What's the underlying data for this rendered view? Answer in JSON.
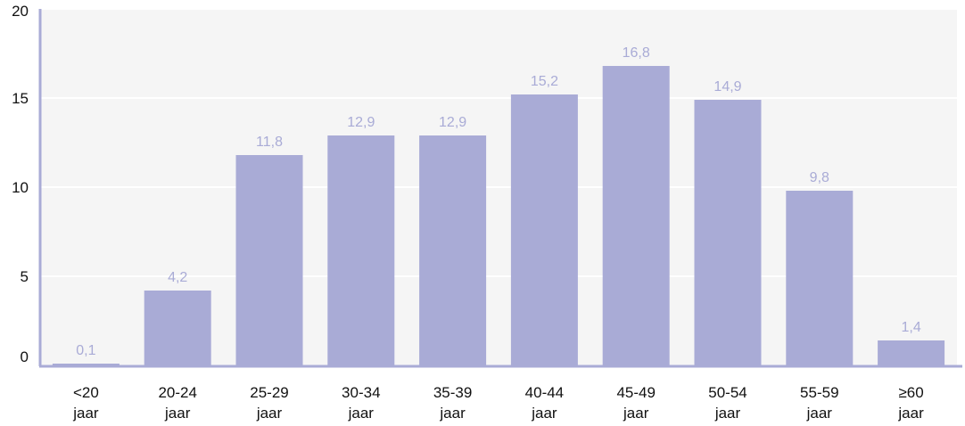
{
  "chart_data": {
    "type": "bar",
    "categories": [
      [
        "<20",
        "jaar"
      ],
      [
        "20-24",
        "jaar"
      ],
      [
        "25-29",
        "jaar"
      ],
      [
        "30-34",
        "jaar"
      ],
      [
        "35-39",
        "jaar"
      ],
      [
        "40-44",
        "jaar"
      ],
      [
        "45-49",
        "jaar"
      ],
      [
        "50-54",
        "jaar"
      ],
      [
        "55-59",
        "jaar"
      ],
      [
        "≥60",
        "jaar"
      ]
    ],
    "values": [
      0.1,
      4.2,
      11.8,
      12.9,
      12.9,
      15.2,
      16.8,
      14.9,
      9.8,
      1.4
    ],
    "data_labels": [
      "0,1",
      "4,2",
      "11,8",
      "12,9",
      "12,9",
      "15,2",
      "16,8",
      "14,9",
      "9,8",
      "1,4"
    ],
    "y_ticks": [
      0,
      5,
      10,
      15,
      20
    ],
    "ylim": [
      0,
      20
    ],
    "grid": true,
    "colors": {
      "bar": "#a9abd6",
      "data_label": "#a9abd6",
      "plot_border": "#a9abd6",
      "grid": "#ffffff",
      "plot_background": "#f5f5f5"
    }
  }
}
